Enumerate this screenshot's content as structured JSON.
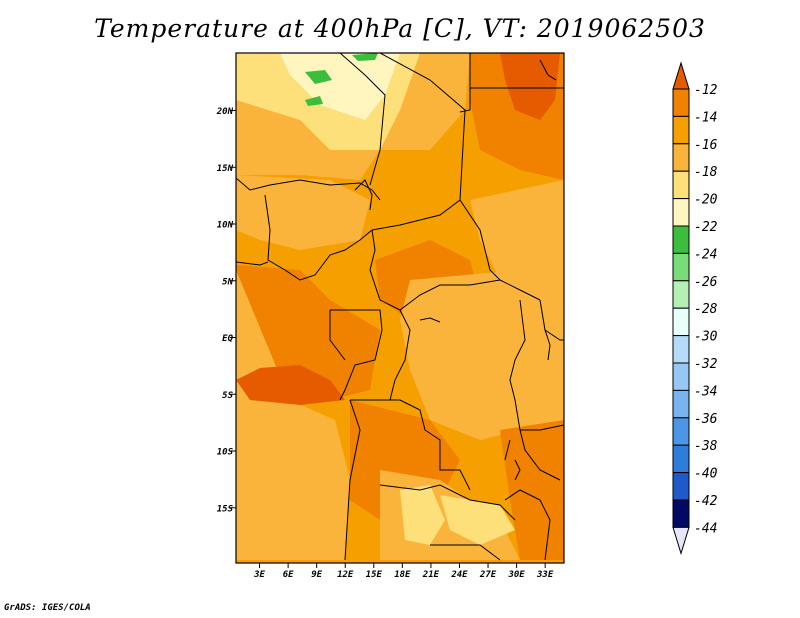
{
  "title": "Temperature at 400hPa [C], VT: 2019062503",
  "credit": "GrADS: IGES/COLA",
  "map": {
    "lat_labels": [
      {
        "label": "20N",
        "lat": 20
      },
      {
        "label": "15N",
        "lat": 15
      },
      {
        "label": "10N",
        "lat": 10
      },
      {
        "label": "5N",
        "lat": 5
      },
      {
        "label": "EQ",
        "lat": 0
      },
      {
        "label": "5S",
        "lat": -5
      },
      {
        "label": "10S",
        "lat": -10
      },
      {
        "label": "15S",
        "lat": -15
      }
    ],
    "lon_labels": [
      {
        "label": "3E",
        "lon": 3
      },
      {
        "label": "6E",
        "lon": 6
      },
      {
        "label": "9E",
        "lon": 9
      },
      {
        "label": "12E",
        "lon": 12
      },
      {
        "label": "15E",
        "lon": 15
      },
      {
        "label": "18E",
        "lon": 18
      },
      {
        "label": "21E",
        "lon": 21
      },
      {
        "label": "24E",
        "lon": 24
      },
      {
        "label": "27E",
        "lon": 27
      },
      {
        "label": "30E",
        "lon": 30
      },
      {
        "label": "33E",
        "lon": 33
      }
    ]
  },
  "colorbar": {
    "labels": [
      "-12",
      "-14",
      "-16",
      "-18",
      "-20",
      "-22",
      "-24",
      "-26",
      "-28",
      "-30",
      "-32",
      "-34",
      "-36",
      "-38",
      "-40",
      "-42",
      "-44"
    ],
    "colors": [
      "#e65a00",
      "#f08200",
      "#f5a000",
      "#fab43c",
      "#fde07a",
      "#fff5be",
      "#3cbe3c",
      "#78dc78",
      "#b4f0b4",
      "#e8fffa",
      "#b4dcfa",
      "#96c8f5",
      "#78b4f0",
      "#4b96e6",
      "#2d7ddc",
      "#1e5ac8",
      "#000a64",
      "#e6e6fa"
    ]
  }
}
